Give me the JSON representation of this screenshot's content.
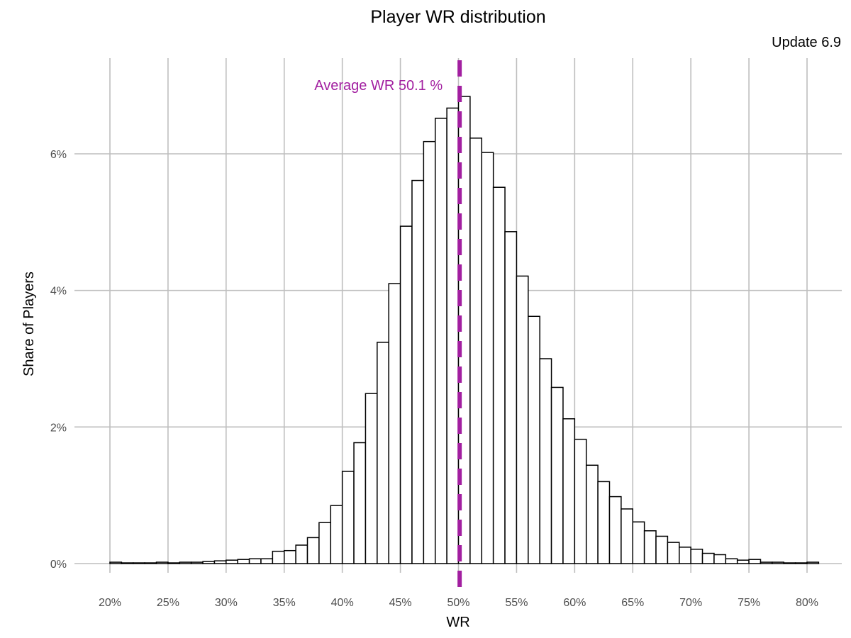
{
  "colors": {
    "mean_line": "#A21FA0",
    "bar_fill": "#ffffff",
    "bar_stroke": "#000000",
    "grid": "#bebebe",
    "tick_text": "#4d4d4d"
  },
  "chart_data": {
    "type": "bar",
    "title": "Player WR distribution",
    "subtitle": "Update 6.9",
    "xlabel": "WR",
    "ylabel": "Share of Players",
    "x_unit": "%",
    "y_unit": "%",
    "xlim": [
      20,
      80
    ],
    "ylim": [
      0,
      7
    ],
    "grid": true,
    "x_ticks": [
      20,
      25,
      30,
      35,
      40,
      45,
      50,
      55,
      60,
      65,
      70,
      75,
      80
    ],
    "x_tick_labels": [
      "20%",
      "25%",
      "30%",
      "35%",
      "40%",
      "45%",
      "50%",
      "55%",
      "60%",
      "65%",
      "70%",
      "75%",
      "80%"
    ],
    "y_ticks": [
      0,
      2,
      4,
      6
    ],
    "y_tick_labels": [
      "0%",
      "2%",
      "4%",
      "6%"
    ],
    "bin_width": 1,
    "bins": [
      {
        "x": 20.5,
        "y": 0.02
      },
      {
        "x": 21.5,
        "y": 0.01
      },
      {
        "x": 22.5,
        "y": 0.01
      },
      {
        "x": 23.5,
        "y": 0.01
      },
      {
        "x": 24.5,
        "y": 0.02
      },
      {
        "x": 25.5,
        "y": 0.01
      },
      {
        "x": 26.5,
        "y": 0.02
      },
      {
        "x": 27.5,
        "y": 0.02
      },
      {
        "x": 28.5,
        "y": 0.03
      },
      {
        "x": 29.5,
        "y": 0.04
      },
      {
        "x": 30.5,
        "y": 0.05
      },
      {
        "x": 31.5,
        "y": 0.06
      },
      {
        "x": 32.5,
        "y": 0.07
      },
      {
        "x": 33.5,
        "y": 0.07
      },
      {
        "x": 34.5,
        "y": 0.18
      },
      {
        "x": 35.5,
        "y": 0.19
      },
      {
        "x": 36.5,
        "y": 0.27
      },
      {
        "x": 37.5,
        "y": 0.38
      },
      {
        "x": 38.5,
        "y": 0.6
      },
      {
        "x": 39.5,
        "y": 0.85
      },
      {
        "x": 40.5,
        "y": 1.35
      },
      {
        "x": 41.5,
        "y": 1.77
      },
      {
        "x": 42.5,
        "y": 2.49
      },
      {
        "x": 43.5,
        "y": 3.24
      },
      {
        "x": 44.5,
        "y": 4.1
      },
      {
        "x": 45.5,
        "y": 4.94
      },
      {
        "x": 46.5,
        "y": 5.61
      },
      {
        "x": 47.5,
        "y": 6.18
      },
      {
        "x": 48.5,
        "y": 6.52
      },
      {
        "x": 49.5,
        "y": 6.67
      },
      {
        "x": 50.5,
        "y": 6.84
      },
      {
        "x": 51.5,
        "y": 6.23
      },
      {
        "x": 52.5,
        "y": 6.02
      },
      {
        "x": 53.5,
        "y": 5.51
      },
      {
        "x": 54.5,
        "y": 4.86
      },
      {
        "x": 55.5,
        "y": 4.21
      },
      {
        "x": 56.5,
        "y": 3.62
      },
      {
        "x": 57.5,
        "y": 3.0
      },
      {
        "x": 58.5,
        "y": 2.58
      },
      {
        "x": 59.5,
        "y": 2.12
      },
      {
        "x": 60.5,
        "y": 1.82
      },
      {
        "x": 61.5,
        "y": 1.44
      },
      {
        "x": 62.5,
        "y": 1.2
      },
      {
        "x": 63.5,
        "y": 0.98
      },
      {
        "x": 64.5,
        "y": 0.8
      },
      {
        "x": 65.5,
        "y": 0.61
      },
      {
        "x": 66.5,
        "y": 0.48
      },
      {
        "x": 67.5,
        "y": 0.4
      },
      {
        "x": 68.5,
        "y": 0.31
      },
      {
        "x": 69.5,
        "y": 0.24
      },
      {
        "x": 70.5,
        "y": 0.21
      },
      {
        "x": 71.5,
        "y": 0.15
      },
      {
        "x": 72.5,
        "y": 0.13
      },
      {
        "x": 73.5,
        "y": 0.07
      },
      {
        "x": 74.5,
        "y": 0.05
      },
      {
        "x": 75.5,
        "y": 0.06
      },
      {
        "x": 76.5,
        "y": 0.02
      },
      {
        "x": 77.5,
        "y": 0.02
      },
      {
        "x": 78.5,
        "y": 0.01
      },
      {
        "x": 79.5,
        "y": 0.01
      },
      {
        "x": 80.5,
        "y": 0.02
      }
    ],
    "mean_line": {
      "x": 50.1,
      "label": "Average WR 50.1 %",
      "style": "dashed"
    }
  }
}
